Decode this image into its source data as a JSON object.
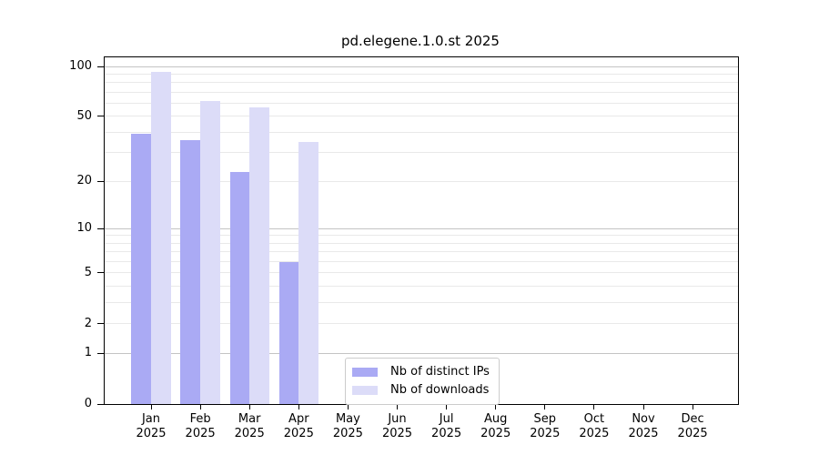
{
  "title": "pd.elegene.1.0.st 2025",
  "chart_data": {
    "type": "bar",
    "title": "pd.elegene.1.0.st 2025",
    "categories": [
      "Jan 2025",
      "Feb 2025",
      "Mar 2025",
      "Apr 2025",
      "May 2025",
      "Jun 2025",
      "Jul 2025",
      "Aug 2025",
      "Sep 2025",
      "Oct 2025",
      "Nov 2025",
      "Dec 2025"
    ],
    "x_tick_month": [
      "Jan",
      "Feb",
      "Mar",
      "Apr",
      "May",
      "Jun",
      "Jul",
      "Aug",
      "Sep",
      "Oct",
      "Nov",
      "Dec"
    ],
    "x_tick_year": "2025",
    "series": [
      {
        "name": "Nb of distinct IPs",
        "color": "#aaaaf4",
        "values": [
          39,
          36,
          23,
          6,
          0,
          0,
          0,
          0,
          0,
          0,
          0,
          0
        ]
      },
      {
        "name": "Nb of downloads",
        "color": "#dcdcf8",
        "values": [
          93,
          62,
          57,
          35,
          0,
          0,
          0,
          0,
          0,
          0,
          0,
          0
        ]
      }
    ],
    "xlabel": "",
    "ylabel": "",
    "yscale": "log1p",
    "ylim": [
      0,
      113
    ],
    "ytick_labels": [
      "100",
      "50",
      "20",
      "10",
      "5",
      "2",
      "1",
      "0"
    ],
    "ytick_values": [
      100,
      50,
      20,
      10,
      5,
      2,
      1,
      0
    ],
    "gridlines_major": [
      1,
      10,
      100
    ],
    "gridlines_minor": [
      2,
      3,
      4,
      5,
      6,
      7,
      8,
      9,
      20,
      30,
      40,
      50,
      60,
      70,
      80,
      90
    ],
    "grid": true,
    "legend_position": "lower center"
  },
  "legend": {
    "items": [
      {
        "label": "Nb of distinct IPs",
        "color": "#aaaaf4"
      },
      {
        "label": "Nb of downloads",
        "color": "#dcdcf8"
      }
    ]
  },
  "colors": {
    "background": "#ffffff",
    "axis": "#000000",
    "grid_major": "#c4c4c4",
    "grid_minor": "#e9e9e9"
  }
}
